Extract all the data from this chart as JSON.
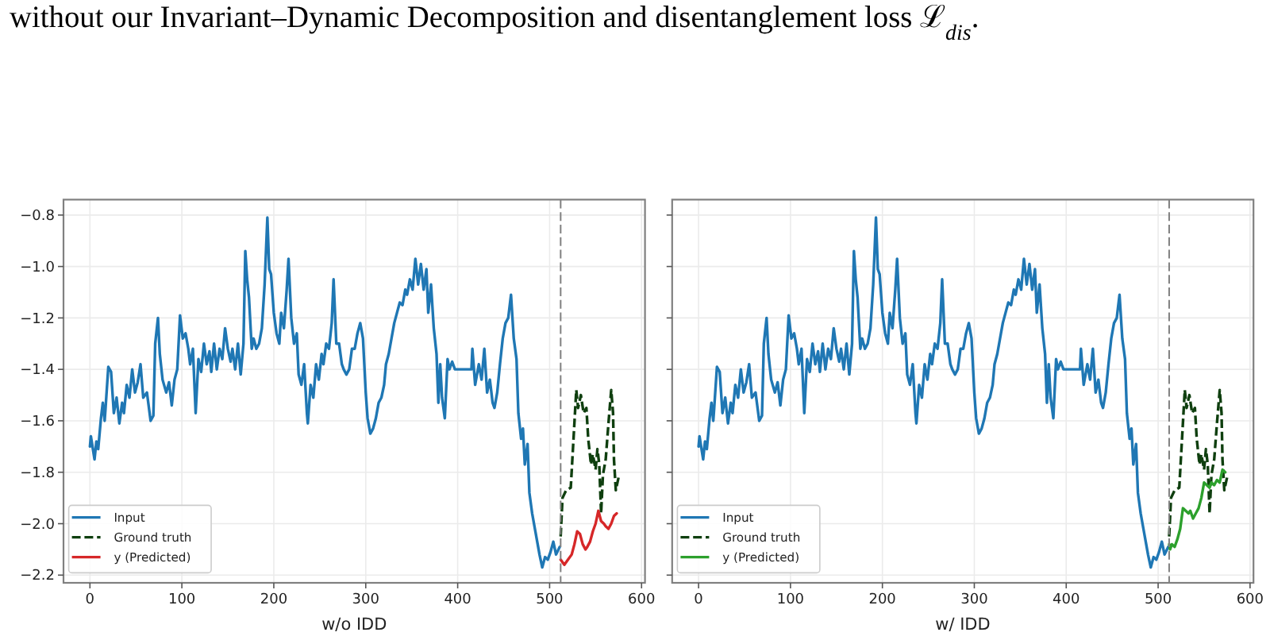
{
  "chart_data": [
    {
      "type": "line",
      "xlabel": "w/o IDD",
      "annotations": [
        "without our Invariant–Dynamic Decomposition and disentanglement loss ℒ$_{dis}$."
      ],
      "xlim": [
        -28.75,
        603.75
      ],
      "ylim": [
        -2.23,
        -0.74
      ],
      "xticks": [
        0,
        100,
        200,
        300,
        400,
        500,
        600
      ],
      "yticks": [
        {
          "value": -2.2,
          "label": "−2.2"
        },
        {
          "value": -2.0,
          "label": "−2.0"
        },
        {
          "value": -1.8,
          "label": "−1.8"
        },
        {
          "value": -1.6,
          "label": "−1.6"
        },
        {
          "value": -1.4,
          "label": "−1.4"
        },
        {
          "value": -1.2,
          "label": "−1.2"
        },
        {
          "value": -1.0,
          "label": "−1.0"
        },
        {
          "value": -0.8,
          "label": "−0.8"
        }
      ],
      "grid": true,
      "legend": "bottom left",
      "ref_lines": [
        {
          "axis": "x",
          "value": 512,
          "color": "#808080",
          "line_style": "dashed"
        }
      ],
      "series": [
        {
          "name": "Input",
          "color": "#1f77b4",
          "x": [
            0,
            1,
            5,
            7,
            9,
            12,
            14,
            16,
            17,
            20,
            23,
            26,
            29,
            32,
            35,
            37,
            40,
            43,
            46,
            49,
            52,
            55,
            58,
            62,
            66,
            69,
            71,
            74,
            76,
            79,
            83,
            86,
            89,
            92,
            95,
            98,
            101,
            104,
            107,
            109,
            112,
            115,
            118,
            121,
            124,
            127,
            130,
            132,
            135,
            138,
            141,
            144,
            147,
            150,
            153,
            155,
            158,
            161,
            164,
            167,
            169,
            171,
            173,
            176,
            178,
            181,
            184,
            187,
            190,
            193,
            195,
            197,
            200,
            203,
            206,
            208,
            211,
            214,
            216,
            219,
            222,
            225,
            227,
            230,
            233,
            236,
            237,
            240,
            243,
            246,
            249,
            252,
            254,
            257,
            260,
            263,
            265,
            268,
            271,
            274,
            276,
            279,
            282,
            285,
            288,
            291,
            294,
            297,
            300,
            302,
            305,
            308,
            311,
            314,
            317,
            320,
            322,
            325,
            328,
            331,
            334,
            337,
            340,
            343,
            345,
            348,
            351,
            354,
            357,
            360,
            363,
            366,
            368,
            371,
            374,
            377,
            379,
            381,
            383,
            386,
            389,
            391,
            394,
            397,
            415,
            416,
            419,
            423,
            426,
            429,
            432,
            435,
            438,
            440,
            443,
            446,
            449,
            452,
            455,
            458,
            461,
            464,
            466,
            469,
            471,
            473,
            476,
            478,
            481,
            484,
            487,
            489,
            492,
            495,
            498,
            501,
            504,
            507,
            511
          ],
          "values": [
            -1.7,
            -1.66,
            -1.75,
            -1.68,
            -1.71,
            -1.59,
            -1.53,
            -1.6,
            -1.55,
            -1.39,
            -1.41,
            -1.57,
            -1.51,
            -1.61,
            -1.53,
            -1.57,
            -1.46,
            -1.51,
            -1.4,
            -1.49,
            -1.45,
            -1.38,
            -1.51,
            -1.49,
            -1.6,
            -1.58,
            -1.3,
            -1.2,
            -1.34,
            -1.44,
            -1.49,
            -1.45,
            -1.54,
            -1.44,
            -1.4,
            -1.19,
            -1.28,
            -1.26,
            -1.32,
            -1.38,
            -1.32,
            -1.57,
            -1.36,
            -1.41,
            -1.3,
            -1.38,
            -1.33,
            -1.41,
            -1.3,
            -1.4,
            -1.32,
            -1.36,
            -1.24,
            -1.32,
            -1.37,
            -1.32,
            -1.4,
            -1.3,
            -1.42,
            -1.3,
            -0.94,
            -1.05,
            -1.12,
            -1.32,
            -1.28,
            -1.32,
            -1.3,
            -1.24,
            -1.07,
            -0.81,
            -1.01,
            -1.03,
            -1.18,
            -1.26,
            -1.3,
            -1.18,
            -1.24,
            -1.09,
            -0.97,
            -1.2,
            -1.3,
            -1.26,
            -1.42,
            -1.46,
            -1.38,
            -1.57,
            -1.61,
            -1.46,
            -1.51,
            -1.38,
            -1.44,
            -1.34,
            -1.38,
            -1.3,
            -1.32,
            -1.22,
            -1.05,
            -1.3,
            -1.3,
            -1.38,
            -1.4,
            -1.42,
            -1.4,
            -1.32,
            -1.32,
            -1.26,
            -1.22,
            -1.28,
            -1.49,
            -1.59,
            -1.65,
            -1.63,
            -1.59,
            -1.53,
            -1.51,
            -1.46,
            -1.38,
            -1.34,
            -1.28,
            -1.22,
            -1.18,
            -1.14,
            -1.15,
            -1.09,
            -1.11,
            -1.05,
            -1.09,
            -0.97,
            -1.07,
            -0.99,
            -1.09,
            -1.01,
            -1.18,
            -1.07,
            -1.24,
            -1.34,
            -1.53,
            -1.38,
            -1.51,
            -1.59,
            -1.36,
            -1.4,
            -1.37,
            -1.4,
            -1.4,
            -1.32,
            -1.46,
            -1.38,
            -1.44,
            -1.32,
            -1.49,
            -1.44,
            -1.53,
            -1.55,
            -1.49,
            -1.38,
            -1.28,
            -1.22,
            -1.2,
            -1.11,
            -1.28,
            -1.36,
            -1.57,
            -1.67,
            -1.63,
            -1.77,
            -1.69,
            -1.88,
            -1.96,
            -2.02,
            -2.08,
            -2.12,
            -2.17,
            -2.13,
            -2.14,
            -2.11,
            -2.07,
            -2.12,
            -2.09
          ]
        },
        {
          "name": "Ground truth",
          "color": "#0f3f0f",
          "line_style": "dashed",
          "x": [
            512,
            514,
            518,
            523,
            526,
            529,
            531,
            534,
            537,
            540,
            542,
            545,
            547,
            550,
            552,
            554,
            556,
            558,
            561,
            564,
            567,
            569,
            570,
            572,
            575
          ],
          "values": [
            -2.05,
            -1.9,
            -1.87,
            -1.86,
            -1.67,
            -1.48,
            -1.55,
            -1.5,
            -1.57,
            -1.55,
            -1.67,
            -1.77,
            -1.73,
            -1.79,
            -1.71,
            -1.77,
            -1.96,
            -1.81,
            -1.75,
            -1.61,
            -1.48,
            -1.57,
            -1.75,
            -1.87,
            -1.82
          ]
        },
        {
          "name": "y (Predicted)",
          "color": "#d62728",
          "x": [
            512,
            516,
            520,
            524,
            527,
            530,
            533,
            536,
            539,
            541,
            544,
            547,
            550,
            553,
            556,
            559,
            561,
            564,
            567,
            570,
            573
          ],
          "values": [
            -2.14,
            -2.16,
            -2.14,
            -2.12,
            -2.08,
            -2.03,
            -2.04,
            -2.08,
            -2.1,
            -2.09,
            -2.07,
            -2.03,
            -2.0,
            -1.95,
            -1.99,
            -2.0,
            -2.01,
            -2.02,
            -2.0,
            -1.97,
            -1.96
          ]
        }
      ]
    },
    {
      "type": "line",
      "xlabel": "w/ IDD",
      "tick_labels": "x",
      "xlim": [
        -28.75,
        603.75
      ],
      "ylim": [
        -2.23,
        -0.74
      ],
      "xticks": [
        0,
        100,
        200,
        300,
        400,
        500,
        600
      ],
      "yticks": [
        {
          "value": -2.2,
          "label": null
        },
        {
          "value": -2.0,
          "label": null
        },
        {
          "value": -1.8,
          "label": null
        },
        {
          "value": -1.6,
          "label": null
        },
        {
          "value": -1.4,
          "label": null
        },
        {
          "value": -1.2,
          "label": null
        },
        {
          "value": -1.0,
          "label": null
        },
        {
          "value": -0.8,
          "label": null
        }
      ],
      "grid": true,
      "legend": "bottom left",
      "ref_lines": [
        {
          "axis": "x",
          "value": 512,
          "color": "#808080",
          "line_style": "dashed"
        }
      ],
      "series": [
        {
          "name": "Input",
          "color": "#1f77b4",
          "x": [
            0,
            1,
            5,
            7,
            9,
            12,
            14,
            16,
            17,
            20,
            23,
            26,
            29,
            32,
            35,
            37,
            40,
            43,
            46,
            49,
            52,
            55,
            58,
            62,
            66,
            69,
            71,
            74,
            76,
            79,
            83,
            86,
            89,
            92,
            95,
            98,
            101,
            104,
            107,
            109,
            112,
            115,
            118,
            121,
            124,
            127,
            130,
            132,
            135,
            138,
            141,
            144,
            147,
            150,
            153,
            155,
            158,
            161,
            164,
            167,
            169,
            171,
            173,
            176,
            178,
            181,
            184,
            187,
            190,
            193,
            195,
            197,
            200,
            203,
            206,
            208,
            211,
            214,
            216,
            219,
            222,
            225,
            227,
            230,
            233,
            236,
            237,
            240,
            243,
            246,
            249,
            252,
            254,
            257,
            260,
            263,
            265,
            268,
            271,
            274,
            276,
            279,
            282,
            285,
            288,
            291,
            294,
            297,
            300,
            302,
            305,
            308,
            311,
            314,
            317,
            320,
            322,
            325,
            328,
            331,
            334,
            337,
            340,
            343,
            345,
            348,
            351,
            354,
            357,
            360,
            363,
            366,
            368,
            371,
            374,
            377,
            379,
            381,
            383,
            386,
            389,
            391,
            394,
            397,
            415,
            416,
            419,
            423,
            426,
            429,
            432,
            435,
            438,
            440,
            443,
            446,
            449,
            452,
            455,
            458,
            461,
            464,
            466,
            469,
            471,
            473,
            476,
            478,
            481,
            484,
            487,
            489,
            492,
            495,
            498,
            501,
            504,
            507,
            511
          ],
          "values": [
            -1.7,
            -1.66,
            -1.75,
            -1.68,
            -1.71,
            -1.59,
            -1.53,
            -1.6,
            -1.55,
            -1.39,
            -1.41,
            -1.57,
            -1.51,
            -1.61,
            -1.53,
            -1.57,
            -1.46,
            -1.51,
            -1.4,
            -1.49,
            -1.45,
            -1.38,
            -1.51,
            -1.49,
            -1.6,
            -1.58,
            -1.3,
            -1.2,
            -1.34,
            -1.44,
            -1.49,
            -1.45,
            -1.54,
            -1.44,
            -1.4,
            -1.19,
            -1.28,
            -1.26,
            -1.32,
            -1.38,
            -1.32,
            -1.57,
            -1.36,
            -1.41,
            -1.3,
            -1.38,
            -1.33,
            -1.41,
            -1.3,
            -1.4,
            -1.32,
            -1.36,
            -1.24,
            -1.32,
            -1.37,
            -1.32,
            -1.4,
            -1.3,
            -1.42,
            -1.3,
            -0.94,
            -1.05,
            -1.12,
            -1.32,
            -1.28,
            -1.32,
            -1.3,
            -1.24,
            -1.07,
            -0.81,
            -1.01,
            -1.03,
            -1.18,
            -1.26,
            -1.3,
            -1.18,
            -1.24,
            -1.09,
            -0.97,
            -1.2,
            -1.3,
            -1.26,
            -1.42,
            -1.46,
            -1.38,
            -1.57,
            -1.61,
            -1.46,
            -1.51,
            -1.38,
            -1.44,
            -1.34,
            -1.38,
            -1.3,
            -1.32,
            -1.22,
            -1.05,
            -1.3,
            -1.3,
            -1.38,
            -1.4,
            -1.42,
            -1.4,
            -1.32,
            -1.32,
            -1.26,
            -1.22,
            -1.28,
            -1.49,
            -1.59,
            -1.65,
            -1.63,
            -1.59,
            -1.53,
            -1.51,
            -1.46,
            -1.38,
            -1.34,
            -1.28,
            -1.22,
            -1.18,
            -1.14,
            -1.15,
            -1.09,
            -1.11,
            -1.05,
            -1.09,
            -0.97,
            -1.07,
            -0.99,
            -1.09,
            -1.01,
            -1.18,
            -1.07,
            -1.24,
            -1.34,
            -1.53,
            -1.38,
            -1.51,
            -1.59,
            -1.36,
            -1.4,
            -1.37,
            -1.4,
            -1.4,
            -1.32,
            -1.46,
            -1.38,
            -1.44,
            -1.32,
            -1.49,
            -1.44,
            -1.53,
            -1.55,
            -1.49,
            -1.38,
            -1.28,
            -1.22,
            -1.2,
            -1.11,
            -1.28,
            -1.36,
            -1.57,
            -1.67,
            -1.63,
            -1.77,
            -1.69,
            -1.88,
            -1.96,
            -2.02,
            -2.08,
            -2.12,
            -2.17,
            -2.13,
            -2.14,
            -2.11,
            -2.07,
            -2.12,
            -2.09
          ]
        },
        {
          "name": "Ground truth",
          "color": "#0f3f0f",
          "line_style": "dashed",
          "x": [
            512,
            514,
            518,
            523,
            526,
            529,
            531,
            534,
            537,
            540,
            542,
            545,
            547,
            550,
            552,
            554,
            556,
            558,
            561,
            564,
            567,
            569,
            570,
            572,
            575
          ],
          "values": [
            -2.05,
            -1.9,
            -1.87,
            -1.86,
            -1.67,
            -1.48,
            -1.55,
            -1.5,
            -1.57,
            -1.55,
            -1.67,
            -1.77,
            -1.73,
            -1.79,
            -1.71,
            -1.77,
            -1.96,
            -1.81,
            -1.75,
            -1.61,
            -1.48,
            -1.57,
            -1.75,
            -1.87,
            -1.82
          ]
        },
        {
          "name": "y (Predicted)",
          "color": "#2ca02c",
          "x": [
            512,
            513,
            515,
            518,
            521,
            524,
            527,
            530,
            533,
            535,
            538,
            541,
            544,
            547,
            550,
            553,
            556,
            558,
            561,
            564,
            567,
            570,
            573
          ],
          "values": [
            -2.08,
            -2.1,
            -2.08,
            -2.09,
            -2.06,
            -2.02,
            -1.94,
            -1.95,
            -1.96,
            -1.95,
            -1.98,
            -1.96,
            -1.94,
            -1.9,
            -1.84,
            -1.85,
            -1.86,
            -1.84,
            -1.85,
            -1.83,
            -1.84,
            -1.79,
            -1.8
          ]
        }
      ]
    }
  ]
}
